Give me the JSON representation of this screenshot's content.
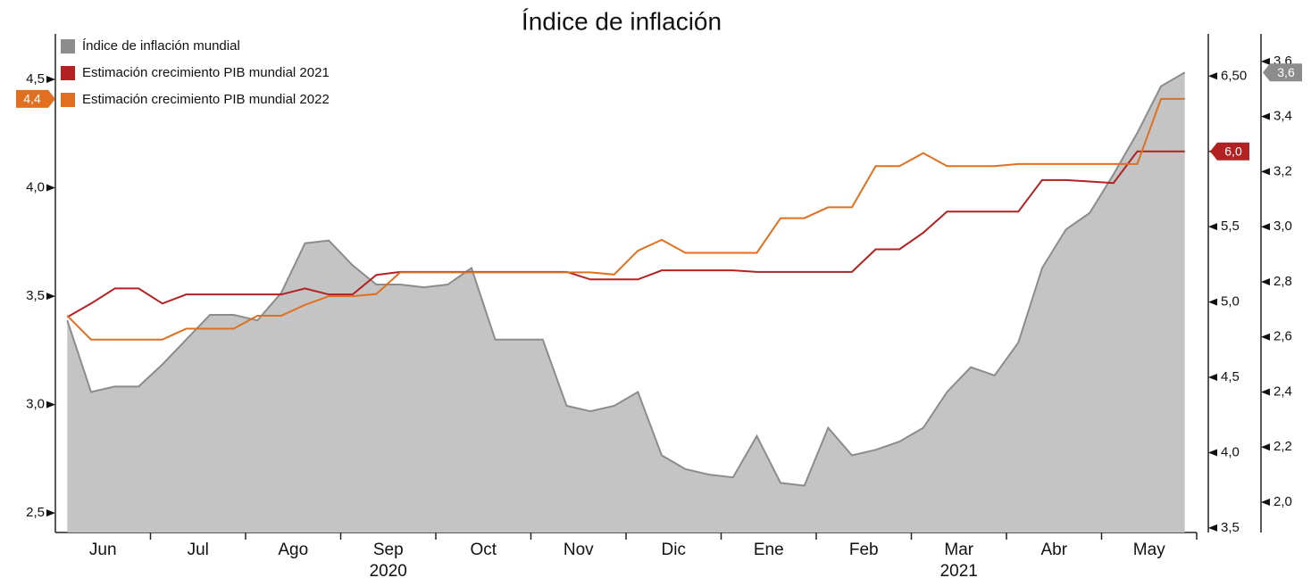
{
  "chart_data": {
    "type": "line",
    "title": "Índice de inflación",
    "categories": [
      "Jun",
      null,
      null,
      null,
      "Jul",
      null,
      null,
      null,
      "Ago",
      null,
      null,
      null,
      "Sep",
      null,
      null,
      null,
      "Oct",
      null,
      null,
      null,
      "Nov",
      null,
      null,
      null,
      "Dic",
      null,
      null,
      null,
      "Ene",
      null,
      null,
      null,
      "Feb",
      null,
      null,
      null,
      "Mar",
      null,
      null,
      null,
      "Abr",
      null,
      null,
      null,
      "May",
      null,
      null,
      null
    ],
    "year_labels": [
      {
        "label": "2020",
        "category": 12
      },
      {
        "label": "2021",
        "category": 36
      }
    ],
    "series": [
      {
        "name": "Índice de inflación mundial",
        "color": "#8c8c8c",
        "fill": "#c4c4c4",
        "axis": "y3",
        "end_label": "3,6",
        "values": [
          2.66,
          2.4,
          2.42,
          2.42,
          2.5,
          2.59,
          2.68,
          2.68,
          2.66,
          2.76,
          2.94,
          2.95,
          2.86,
          2.79,
          2.79,
          2.78,
          2.79,
          2.85,
          2.59,
          2.59,
          2.59,
          2.35,
          2.33,
          2.35,
          2.4,
          2.17,
          2.12,
          2.1,
          2.09,
          2.24,
          2.07,
          2.06,
          2.27,
          2.17,
          2.19,
          2.22,
          2.27,
          2.4,
          2.49,
          2.46,
          2.58,
          2.85,
          2.99,
          3.05,
          3.19,
          3.34,
          3.51,
          3.56
        ]
      },
      {
        "name": "Estimación crecimiento PIB mundial 2021",
        "color": "#b22222",
        "axis": "y2",
        "end_label": "6,0",
        "values": [
          4.9,
          4.99,
          5.09,
          5.09,
          4.99,
          5.05,
          5.05,
          5.05,
          5.05,
          5.05,
          5.09,
          5.05,
          5.05,
          5.18,
          5.2,
          5.2,
          5.2,
          5.2,
          5.2,
          5.2,
          5.2,
          5.2,
          5.15,
          5.15,
          5.15,
          5.21,
          5.21,
          5.21,
          5.21,
          5.2,
          5.2,
          5.2,
          5.2,
          5.2,
          5.35,
          5.35,
          5.46,
          5.6,
          5.6,
          5.6,
          5.6,
          5.81,
          5.81,
          5.8,
          5.79,
          6.0,
          6.0,
          6.0
        ]
      },
      {
        "name": "Estimación crecimiento PIB mundial 2022",
        "color": "#e07020",
        "axis": "y",
        "end_label": "4,4",
        "values": [
          3.41,
          3.3,
          3.3,
          3.3,
          3.3,
          3.35,
          3.35,
          3.35,
          3.41,
          3.41,
          3.46,
          3.5,
          3.5,
          3.51,
          3.61,
          3.61,
          3.61,
          3.61,
          3.61,
          3.61,
          3.61,
          3.61,
          3.61,
          3.6,
          3.71,
          3.76,
          3.7,
          3.7,
          3.7,
          3.7,
          3.86,
          3.86,
          3.91,
          3.91,
          4.1,
          4.1,
          4.16,
          4.1,
          4.1,
          4.1,
          4.11,
          4.11,
          4.11,
          4.11,
          4.11,
          4.11,
          4.41,
          4.41
        ]
      }
    ],
    "ylim": [
      2.41,
      4.71
    ],
    "yticks": [
      {
        "value": 2.5,
        "label": "2,5"
      },
      {
        "value": 3.0,
        "label": "3,0"
      },
      {
        "value": 3.5,
        "label": "3,5"
      },
      {
        "value": 4.0,
        "label": "4,0"
      },
      {
        "value": 4.5,
        "label": "4,5"
      }
    ],
    "y2lim": [
      3.47,
      6.78
    ],
    "y2ticks": [
      {
        "value": 3.5,
        "label": "3,5"
      },
      {
        "value": 4.0,
        "label": "4,0"
      },
      {
        "value": 4.5,
        "label": "4,5"
      },
      {
        "value": 5.0,
        "label": "5,0"
      },
      {
        "value": 5.5,
        "label": "5,5"
      },
      {
        "value": 6.0,
        "label": "6,0"
      },
      {
        "value": 6.5,
        "label": "6,50"
      }
    ],
    "y3lim": [
      1.89,
      3.7
    ],
    "y3ticks": [
      {
        "value": 2.0,
        "label": "2,0"
      },
      {
        "value": 2.2,
        "label": "2,2"
      },
      {
        "value": 2.4,
        "label": "2,4"
      },
      {
        "value": 2.6,
        "label": "2,6"
      },
      {
        "value": 2.8,
        "label": "2,8"
      },
      {
        "value": 3.0,
        "label": "3,0"
      },
      {
        "value": 3.2,
        "label": "3,2"
      },
      {
        "value": 3.4,
        "label": "3,4"
      },
      {
        "value": 3.6,
        "label": "3,6"
      }
    ],
    "legend": "upper left"
  }
}
